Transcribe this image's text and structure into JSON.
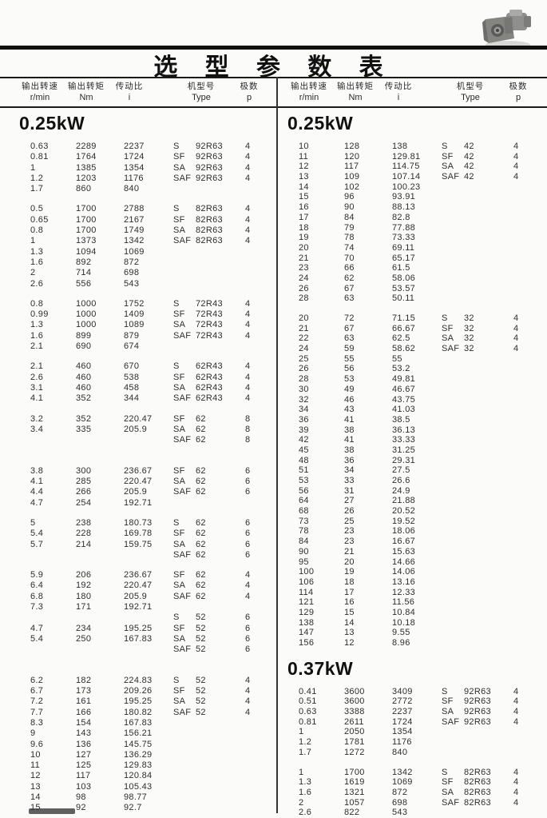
{
  "page": {
    "title": "选 型 参 数 表"
  },
  "table": {
    "header": {
      "cols": [
        {
          "cn": "输出转速",
          "unit": "r/min"
        },
        {
          "cn": "输出转矩",
          "unit": "Nm"
        },
        {
          "cn": "传动比",
          "unit": "i"
        },
        {
          "cn": "机型号",
          "unit": "Type"
        },
        {
          "cn": "极数",
          "unit": "p"
        }
      ]
    },
    "left": {
      "blocks": [
        {
          "section": "0.25kW"
        },
        {
          "rows": [
            [
              "0.63",
              "2289",
              "2237",
              "S",
              "92R63",
              "4"
            ],
            [
              "0.81",
              "1764",
              "1724",
              "SF",
              "92R63",
              "4"
            ],
            [
              "1",
              "1385",
              "1354",
              "SA",
              "92R63",
              "4"
            ],
            [
              "1.2",
              "1203",
              "1176",
              "SAF",
              "92R63",
              "4"
            ],
            [
              "1.7",
              "860",
              "840",
              "",
              "",
              ""
            ]
          ]
        },
        {
          "rows": [
            [
              "0.5",
              "1700",
              "2788",
              "S",
              "82R63",
              "4"
            ],
            [
              "0.65",
              "1700",
              "2167",
              "SF",
              "82R63",
              "4"
            ],
            [
              "0.8",
              "1700",
              "1749",
              "SA",
              "82R63",
              "4"
            ],
            [
              "1",
              "1373",
              "1342",
              "SAF",
              "82R63",
              "4"
            ],
            [
              "1.3",
              "1094",
              "1069",
              "",
              "",
              ""
            ],
            [
              "1.6",
              "892",
              "872",
              "",
              "",
              ""
            ],
            [
              "2",
              "714",
              "698",
              "",
              "",
              ""
            ],
            [
              "2.6",
              "556",
              "543",
              "",
              "",
              ""
            ]
          ]
        },
        {
          "rows": [
            [
              "0.8",
              "1000",
              "1752",
              "S",
              "72R43",
              "4"
            ],
            [
              "0.99",
              "1000",
              "1409",
              "SF",
              "72R43",
              "4"
            ],
            [
              "1.3",
              "1000",
              "1089",
              "SA",
              "72R43",
              "4"
            ],
            [
              "1.6",
              "899",
              "879",
              "SAF",
              "72R43",
              "4"
            ],
            [
              "2.1",
              "690",
              "674",
              "",
              "",
              ""
            ]
          ]
        },
        {
          "rows": [
            [
              "2.1",
              "460",
              "670",
              "S",
              "62R43",
              "4"
            ],
            [
              "2.6",
              "460",
              "538",
              "SF",
              "62R43",
              "4"
            ],
            [
              "3.1",
              "460",
              "458",
              "SA",
              "62R43",
              "4"
            ],
            [
              "4.1",
              "352",
              "344",
              "SAF",
              "62R43",
              "4"
            ]
          ]
        },
        {
          "rows": [
            [
              "3.2",
              "352",
              "220.47",
              "SF",
              "62",
              "8"
            ],
            [
              "3.4",
              "335",
              "205.9",
              "SA",
              "62",
              "8"
            ],
            [
              "",
              "",
              "",
              "SAF",
              "62",
              "8"
            ],
            [
              "",
              "",
              "",
              "",
              "",
              ""
            ]
          ]
        },
        {
          "rows": [
            [
              "3.8",
              "300",
              "236.67",
              "SF",
              "62",
              "6"
            ],
            [
              "4.1",
              "285",
              "220.47",
              "SA",
              "62",
              "6"
            ],
            [
              "4.4",
              "266",
              "205.9",
              "SAF",
              "62",
              "6"
            ],
            [
              "4.7",
              "254",
              "192.71",
              "",
              "",
              ""
            ]
          ]
        },
        {
          "rows": [
            [
              "5",
              "238",
              "180.73",
              "S",
              "62",
              "6"
            ],
            [
              "5.4",
              "228",
              "169.78",
              "SF",
              "62",
              "6"
            ],
            [
              "5.7",
              "214",
              "159.75",
              "SA",
              "62",
              "6"
            ],
            [
              "",
              "",
              "",
              "SAF",
              "62",
              "6"
            ]
          ]
        },
        {
          "rows": [
            [
              "5.9",
              "206",
              "236.67",
              "SF",
              "62",
              "4"
            ],
            [
              "6.4",
              "192",
              "220.47",
              "SA",
              "62",
              "4"
            ],
            [
              "6.8",
              "180",
              "205.9",
              "SAF",
              "62",
              "4"
            ],
            [
              "7.3",
              "171",
              "192.71",
              "",
              "",
              ""
            ],
            [
              "",
              "",
              "",
              "S",
              "52",
              "6"
            ],
            [
              "4.7",
              "234",
              "195.25",
              "SF",
              "52",
              "6"
            ],
            [
              "5.4",
              "250",
              "167.83",
              "SA",
              "52",
              "6"
            ],
            [
              "",
              "",
              "",
              "SAF",
              "52",
              "6"
            ],
            [
              "",
              "",
              "",
              "",
              "",
              ""
            ]
          ]
        },
        {
          "rows": [
            [
              "6.2",
              "182",
              "224.83",
              "S",
              "52",
              "4"
            ],
            [
              "6.7",
              "173",
              "209.26",
              "SF",
              "52",
              "4"
            ],
            [
              "7.2",
              "161",
              "195.25",
              "SA",
              "52",
              "4"
            ],
            [
              "7.7",
              "166",
              "180.82",
              "SAF",
              "52",
              "4"
            ],
            [
              "8.3",
              "154",
              "167.83",
              "",
              "",
              ""
            ],
            [
              "9",
              "143",
              "156.21",
              "",
              "",
              ""
            ],
            [
              "9.6",
              "136",
              "145.75",
              "",
              "",
              ""
            ],
            [
              "10",
              "127",
              "136.29",
              "",
              "",
              ""
            ],
            [
              "11",
              "125",
              "129.83",
              "",
              "",
              ""
            ],
            [
              "12",
              "117",
              "120.84",
              "",
              "",
              ""
            ],
            [
              "13",
              "103",
              "105.43",
              "",
              "",
              ""
            ],
            [
              "14",
              "98",
              "98.77",
              "",
              "",
              ""
            ],
            [
              "15",
              "92",
              "92.7",
              "",
              "",
              ""
            ]
          ]
        }
      ]
    },
    "right": {
      "blocks": [
        {
          "section": "0.25kW"
        },
        {
          "rows": [
            [
              "10",
              "128",
              "138",
              "S",
              "42",
              "4"
            ],
            [
              "11",
              "120",
              "129.81",
              "SF",
              "42",
              "4"
            ],
            [
              "12",
              "117",
              "114.75",
              "SA",
              "42",
              "4"
            ],
            [
              "13",
              "109",
              "107.14",
              "SAF",
              "42",
              "4"
            ],
            [
              "14",
              "102",
              "100.23",
              "",
              "",
              ""
            ],
            [
              "15",
              "96",
              "93.91",
              "",
              "",
              ""
            ],
            [
              "16",
              "90",
              "88.13",
              "",
              "",
              ""
            ],
            [
              "17",
              "84",
              "82.8",
              "",
              "",
              ""
            ],
            [
              "18",
              "79",
              "77.88",
              "",
              "",
              ""
            ],
            [
              "19",
              "78",
              "73.33",
              "",
              "",
              ""
            ],
            [
              "20",
              "74",
              "69.11",
              "",
              "",
              ""
            ],
            [
              "21",
              "70",
              "65.17",
              "",
              "",
              ""
            ],
            [
              "23",
              "66",
              "61.5",
              "",
              "",
              ""
            ],
            [
              "24",
              "62",
              "58.06",
              "",
              "",
              ""
            ],
            [
              "26",
              "67",
              "53.57",
              "",
              "",
              ""
            ],
            [
              "28",
              "63",
              "50.11",
              "",
              "",
              ""
            ]
          ]
        },
        {
          "rows": [
            [
              "20",
              "72",
              "71.15",
              "S",
              "32",
              "4"
            ],
            [
              "21",
              "67",
              "66.67",
              "SF",
              "32",
              "4"
            ],
            [
              "22",
              "63",
              "62.5",
              "SA",
              "32",
              "4"
            ],
            [
              "24",
              "59",
              "58.62",
              "SAF",
              "32",
              "4"
            ],
            [
              "25",
              "55",
              "55",
              "",
              "",
              ""
            ],
            [
              "26",
              "56",
              "53.2",
              "",
              "",
              ""
            ],
            [
              "28",
              "53",
              "49.81",
              "",
              "",
              ""
            ],
            [
              "30",
              "49",
              "46.67",
              "",
              "",
              ""
            ],
            [
              "32",
              "46",
              "43.75",
              "",
              "",
              ""
            ],
            [
              "34",
              "43",
              "41.03",
              "",
              "",
              ""
            ],
            [
              "36",
              "41",
              "38.5",
              "",
              "",
              ""
            ],
            [
              "39",
              "38",
              "36.13",
              "",
              "",
              ""
            ],
            [
              "42",
              "41",
              "33.33",
              "",
              "",
              ""
            ],
            [
              "45",
              "38",
              "31.25",
              "",
              "",
              ""
            ],
            [
              "48",
              "36",
              "29.31",
              "",
              "",
              ""
            ],
            [
              "51",
              "34",
              "27.5",
              "",
              "",
              ""
            ],
            [
              "53",
              "33",
              "26.6",
              "",
              "",
              ""
            ],
            [
              "56",
              "31",
              "24.9",
              "",
              "",
              ""
            ],
            [
              "64",
              "27",
              "21.88",
              "",
              "",
              ""
            ],
            [
              "68",
              "26",
              "20.52",
              "",
              "",
              ""
            ],
            [
              "73",
              "25",
              "19.52",
              "",
              "",
              ""
            ],
            [
              "78",
              "23",
              "18.06",
              "",
              "",
              ""
            ],
            [
              "84",
              "23",
              "16.67",
              "",
              "",
              ""
            ],
            [
              "90",
              "21",
              "15.63",
              "",
              "",
              ""
            ],
            [
              "95",
              "20",
              "14.66",
              "",
              "",
              ""
            ],
            [
              "100",
              "19",
              "14.06",
              "",
              "",
              ""
            ],
            [
              "106",
              "18",
              "13.16",
              "",
              "",
              ""
            ],
            [
              "114",
              "17",
              "12.33",
              "",
              "",
              ""
            ],
            [
              "121",
              "16",
              "11.56",
              "",
              "",
              ""
            ],
            [
              "129",
              "15",
              "10.84",
              "",
              "",
              ""
            ],
            [
              "138",
              "14",
              "10.18",
              "",
              "",
              ""
            ],
            [
              "147",
              "13",
              "9.55",
              "",
              "",
              ""
            ],
            [
              "156",
              "12",
              "8.96",
              "",
              "",
              ""
            ]
          ]
        },
        {
          "section": "0.37kW"
        },
        {
          "rows": [
            [
              "0.41",
              "3600",
              "3409",
              "S",
              "92R63",
              "4"
            ],
            [
              "0.51",
              "3600",
              "2772",
              "SF",
              "92R63",
              "4"
            ],
            [
              "0.63",
              "3388",
              "2237",
              "SA",
              "92R63",
              "4"
            ],
            [
              "0.81",
              "2611",
              "1724",
              "SAF",
              "92R63",
              "4"
            ],
            [
              "1",
              "2050",
              "1354",
              "",
              "",
              ""
            ],
            [
              "1.2",
              "1781",
              "1176",
              "",
              "",
              ""
            ],
            [
              "1.7",
              "1272",
              "840",
              "",
              "",
              ""
            ]
          ]
        },
        {
          "rows": [
            [
              "1",
              "1700",
              "1342",
              "S",
              "82R63",
              "4"
            ],
            [
              "1.3",
              "1619",
              "1069",
              "SF",
              "82R63",
              "4"
            ],
            [
              "1.6",
              "1321",
              "872",
              "SA",
              "82R63",
              "4"
            ],
            [
              "2",
              "1057",
              "698",
              "SAF",
              "82R63",
              "4"
            ],
            [
              "2.6",
              "822",
              "543",
              "",
              "",
              ""
            ]
          ]
        }
      ]
    }
  }
}
